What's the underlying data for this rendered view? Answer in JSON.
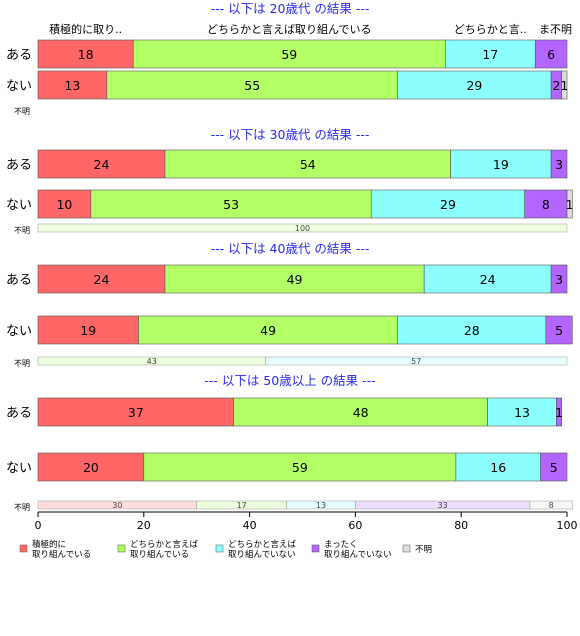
{
  "chart_data": {
    "type": "bar",
    "orientation": "horizontal",
    "stacked": true,
    "xlim": [
      0,
      100
    ],
    "x_ticks": [
      "0",
      "20",
      "40",
      "60",
      "80",
      "100"
    ],
    "series": [
      {
        "name": "積極的に\n取り組んでいる",
        "color": "#ff6666"
      },
      {
        "name": "どちらかと言えば\n取り組んでいる",
        "color": "#b3ff66"
      },
      {
        "name": "どちらかと言えば\n取り組んでいない",
        "color": "#8cffff"
      },
      {
        "name": "まったく\n取り組んでいない",
        "color": "#b366ff"
      },
      {
        "name": "不明",
        "color": "#dddddd"
      }
    ],
    "segment_header_labels": [
      "積極的に取り..",
      "どちらかと言えば取り組んでいる",
      "どちらかと言..",
      "ま..",
      "不明"
    ],
    "panels": [
      {
        "title": "--- 以下は 20歳代 の結果 ---",
        "rows": [
          {
            "label": "ある",
            "values": [
              18,
              59,
              17,
              6,
              0
            ]
          },
          {
            "label": "ない",
            "values": [
              13,
              55,
              29,
              2,
              1
            ]
          }
        ],
        "unknown_row": {
          "label": "不明",
          "values": []
        }
      },
      {
        "title": "--- 以下は 30歳代 の結果 ---",
        "rows": [
          {
            "label": "ある",
            "values": [
              24,
              54,
              19,
              3,
              0
            ]
          },
          {
            "label": "ない",
            "values": [
              10,
              53,
              29,
              8,
              1
            ]
          }
        ],
        "unknown_row": {
          "label": "不明",
          "values": [
            0,
            100,
            0,
            0,
            0
          ]
        }
      },
      {
        "title": "--- 以下は 40歳代 の結果 ---",
        "rows": [
          {
            "label": "ある",
            "values": [
              24,
              49,
              24,
              3,
              0
            ]
          },
          {
            "label": "ない",
            "values": [
              19,
              49,
              28,
              5,
              0
            ]
          }
        ],
        "unknown_row": {
          "label": "不明",
          "values": [
            0,
            43,
            57,
            0,
            0
          ]
        }
      },
      {
        "title": "--- 以下は 50歳以上 の結果 ---",
        "rows": [
          {
            "label": "ある",
            "values": [
              37,
              48,
              13,
              1,
              0
            ]
          },
          {
            "label": "ない",
            "values": [
              20,
              59,
              16,
              5,
              0
            ]
          }
        ],
        "unknown_row": {
          "label": "不明",
          "values": [
            30,
            17,
            13,
            33,
            8
          ]
        }
      }
    ]
  }
}
